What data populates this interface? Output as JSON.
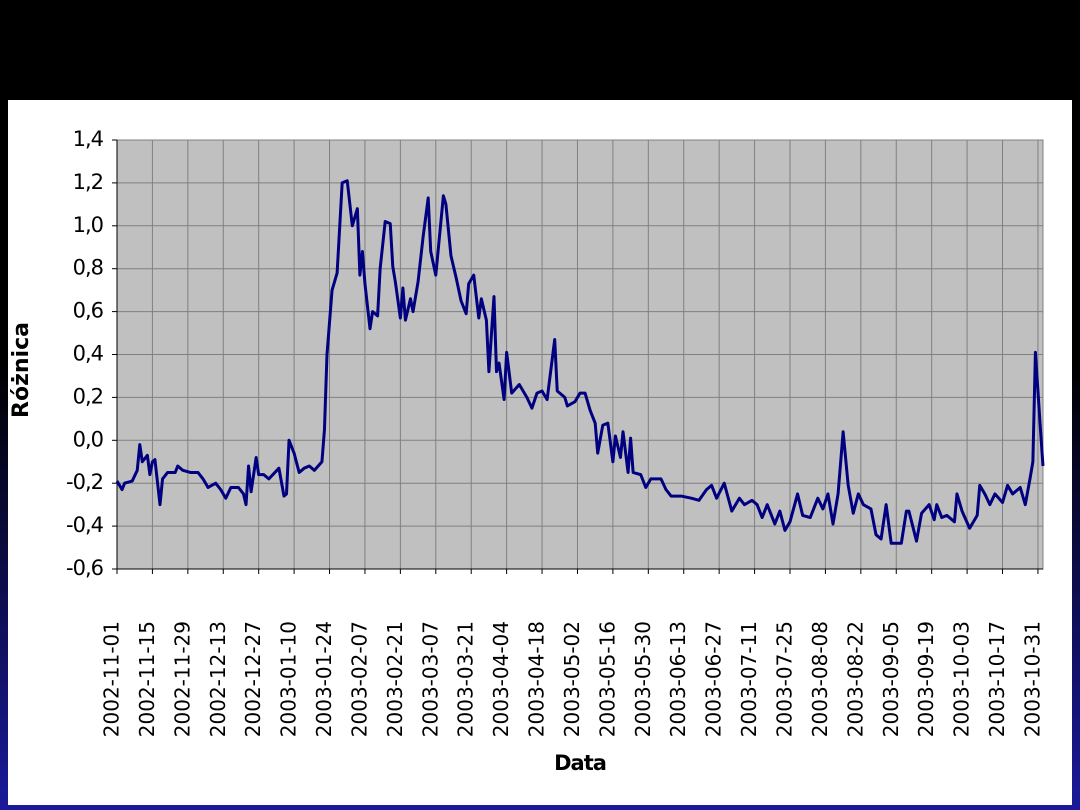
{
  "chart_data": {
    "type": "line",
    "x_label": "Data",
    "y_label": "Różnica",
    "grid": true,
    "xlim": [
      "2002-11-01",
      "2003-11-02"
    ],
    "xticks": [
      "2002-11-01",
      "2002-11-15",
      "2002-11-29",
      "2002-12-13",
      "2002-12-27",
      "2003-01-10",
      "2003-01-24",
      "2003-02-07",
      "2003-02-21",
      "2003-03-07",
      "2003-03-21",
      "2003-04-04",
      "2003-04-18",
      "2003-05-02",
      "2003-05-16",
      "2003-05-30",
      "2003-06-13",
      "2003-06-27",
      "2003-07-11",
      "2003-07-25",
      "2003-08-08",
      "2003-08-22",
      "2003-09-05",
      "2003-09-19",
      "2003-10-03",
      "2003-10-17",
      "2003-10-31"
    ],
    "ylim": [
      -0.6,
      1.4
    ],
    "yticks": [
      {
        "value": -0.6,
        "label": "-0,6"
      },
      {
        "value": -0.4,
        "label": "-0,4"
      },
      {
        "value": -0.2,
        "label": "-0,2"
      },
      {
        "value": 0,
        "label": "0,0"
      },
      {
        "value": 0.2,
        "label": "0,2"
      },
      {
        "value": 0.4,
        "label": "0,4"
      },
      {
        "value": 0.6,
        "label": "0,6"
      },
      {
        "value": 0.8,
        "label": "0,8"
      },
      {
        "value": 1.0,
        "label": "1,0"
      },
      {
        "value": 1.2,
        "label": "1,2"
      },
      {
        "value": 1.4,
        "label": "1,4"
      }
    ],
    "x": [
      "2002-11-01",
      "2002-11-03",
      "2002-11-04",
      "2002-11-07",
      "2002-11-09",
      "2002-11-10",
      "2002-11-11",
      "2002-11-13",
      "2002-11-14",
      "2002-11-15",
      "2002-11-16",
      "2002-11-18",
      "2002-11-19",
      "2002-11-21",
      "2002-11-24",
      "2002-11-25",
      "2002-11-27",
      "2002-11-30",
      "2002-12-03",
      "2002-12-05",
      "2002-12-07",
      "2002-12-10",
      "2002-12-12",
      "2002-12-14",
      "2002-12-16",
      "2002-12-19",
      "2002-12-21",
      "2002-12-22",
      "2002-12-23",
      "2002-12-24",
      "2002-12-26",
      "2002-12-27",
      "2002-12-29",
      "2002-12-31",
      "2003-01-04",
      "2003-01-06",
      "2003-01-07",
      "2003-01-08",
      "2003-01-10",
      "2003-01-12",
      "2003-01-14",
      "2003-01-16",
      "2003-01-18",
      "2003-01-21",
      "2003-01-22",
      "2003-01-23",
      "2003-01-25",
      "2003-01-27",
      "2003-01-29",
      "2003-01-31",
      "2003-02-02",
      "2003-02-04",
      "2003-02-05",
      "2003-02-06",
      "2003-02-07",
      "2003-02-09",
      "2003-02-10",
      "2003-02-12",
      "2003-02-13",
      "2003-02-15",
      "2003-02-17",
      "2003-02-18",
      "2003-02-19",
      "2003-02-21",
      "2003-02-22",
      "2003-02-23",
      "2003-02-25",
      "2003-02-26",
      "2003-02-28",
      "2003-03-02",
      "2003-03-04",
      "2003-03-05",
      "2003-03-07",
      "2003-03-10",
      "2003-03-11",
      "2003-03-13",
      "2003-03-15",
      "2003-03-17",
      "2003-03-19",
      "2003-03-20",
      "2003-03-22",
      "2003-03-24",
      "2003-03-25",
      "2003-03-27",
      "2003-03-28",
      "2003-03-30",
      "2003-03-31",
      "2003-04-01",
      "2003-04-03",
      "2003-04-04",
      "2003-04-06",
      "2003-04-09",
      "2003-04-12",
      "2003-04-14",
      "2003-04-16",
      "2003-04-18",
      "2003-04-20",
      "2003-04-23",
      "2003-04-24",
      "2003-04-27",
      "2003-04-28",
      "2003-05-01",
      "2003-05-03",
      "2003-05-05",
      "2003-05-07",
      "2003-05-09",
      "2003-05-10",
      "2003-05-12",
      "2003-05-14",
      "2003-05-16",
      "2003-05-17",
      "2003-05-19",
      "2003-05-20",
      "2003-05-22",
      "2003-05-23",
      "2003-05-24",
      "2003-05-27",
      "2003-05-29",
      "2003-05-31",
      "2003-06-04",
      "2003-06-06",
      "2003-06-08",
      "2003-06-12",
      "2003-06-16",
      "2003-06-19",
      "2003-06-22",
      "2003-06-24",
      "2003-06-26",
      "2003-06-29",
      "2003-07-02",
      "2003-07-05",
      "2003-07-07",
      "2003-07-10",
      "2003-07-12",
      "2003-07-14",
      "2003-07-16",
      "2003-07-19",
      "2003-07-21",
      "2003-07-23",
      "2003-07-25",
      "2003-07-28",
      "2003-07-30",
      "2003-08-02",
      "2003-08-05",
      "2003-08-07",
      "2003-08-09",
      "2003-08-11",
      "2003-08-13",
      "2003-08-15",
      "2003-08-17",
      "2003-08-19",
      "2003-08-21",
      "2003-08-23",
      "2003-08-26",
      "2003-08-28",
      "2003-08-30",
      "2003-09-01",
      "2003-09-03",
      "2003-09-07",
      "2003-09-09",
      "2003-09-10",
      "2003-09-13",
      "2003-09-15",
      "2003-09-18",
      "2003-09-20",
      "2003-09-21",
      "2003-09-23",
      "2003-09-25",
      "2003-09-28",
      "2003-09-29",
      "2003-10-01",
      "2003-10-04",
      "2003-10-07",
      "2003-10-08",
      "2003-10-10",
      "2003-10-12",
      "2003-10-14",
      "2003-10-17",
      "2003-10-19",
      "2003-10-21",
      "2003-10-24",
      "2003-10-26",
      "2003-10-28",
      "2003-10-29",
      "2003-10-30",
      "2003-11-01",
      "2003-11-02"
    ],
    "series": [
      {
        "name": "Różnica",
        "color": "#000080",
        "values": [
          -0.19,
          -0.23,
          -0.2,
          -0.19,
          -0.14,
          -0.02,
          -0.1,
          -0.07,
          -0.16,
          -0.1,
          -0.09,
          -0.3,
          -0.18,
          -0.15,
          -0.15,
          -0.12,
          -0.14,
          -0.15,
          -0.15,
          -0.18,
          -0.22,
          -0.2,
          -0.23,
          -0.27,
          -0.22,
          -0.22,
          -0.25,
          -0.3,
          -0.12,
          -0.24,
          -0.08,
          -0.16,
          -0.16,
          -0.18,
          -0.13,
          -0.26,
          -0.25,
          0.0,
          -0.06,
          -0.15,
          -0.13,
          -0.12,
          -0.14,
          -0.1,
          0.05,
          0.4,
          0.7,
          0.78,
          1.2,
          1.21,
          1.0,
          1.08,
          0.77,
          0.88,
          0.73,
          0.52,
          0.6,
          0.58,
          0.8,
          1.02,
          1.01,
          0.81,
          0.74,
          0.57,
          0.71,
          0.56,
          0.66,
          0.6,
          0.74,
          0.95,
          1.13,
          0.88,
          0.77,
          1.14,
          1.1,
          0.86,
          0.76,
          0.65,
          0.59,
          0.73,
          0.77,
          0.57,
          0.66,
          0.56,
          0.32,
          0.67,
          0.32,
          0.36,
          0.19,
          0.41,
          0.22,
          0.26,
          0.2,
          0.15,
          0.22,
          0.23,
          0.19,
          0.47,
          0.23,
          0.2,
          0.16,
          0.18,
          0.22,
          0.22,
          0.14,
          0.08,
          -0.06,
          0.07,
          0.08,
          -0.1,
          0.02,
          -0.08,
          0.04,
          -0.15,
          0.01,
          -0.15,
          -0.16,
          -0.22,
          -0.18,
          -0.18,
          -0.23,
          -0.26,
          -0.26,
          -0.27,
          -0.28,
          -0.23,
          -0.21,
          -0.27,
          -0.2,
          -0.33,
          -0.27,
          -0.3,
          -0.28,
          -0.3,
          -0.36,
          -0.3,
          -0.39,
          -0.33,
          -0.42,
          -0.38,
          -0.25,
          -0.35,
          -0.36,
          -0.27,
          -0.32,
          -0.25,
          -0.39,
          -0.25,
          0.04,
          -0.21,
          -0.34,
          -0.25,
          -0.3,
          -0.32,
          -0.44,
          -0.46,
          -0.3,
          -0.48,
          -0.48,
          -0.33,
          -0.33,
          -0.47,
          -0.34,
          -0.3,
          -0.37,
          -0.3,
          -0.36,
          -0.35,
          -0.38,
          -0.25,
          -0.33,
          -0.41,
          -0.35,
          -0.21,
          -0.25,
          -0.3,
          -0.25,
          -0.29,
          -0.21,
          -0.25,
          -0.22,
          -0.3,
          -0.17,
          -0.1,
          0.41,
          0.05,
          -0.12
        ]
      }
    ]
  }
}
